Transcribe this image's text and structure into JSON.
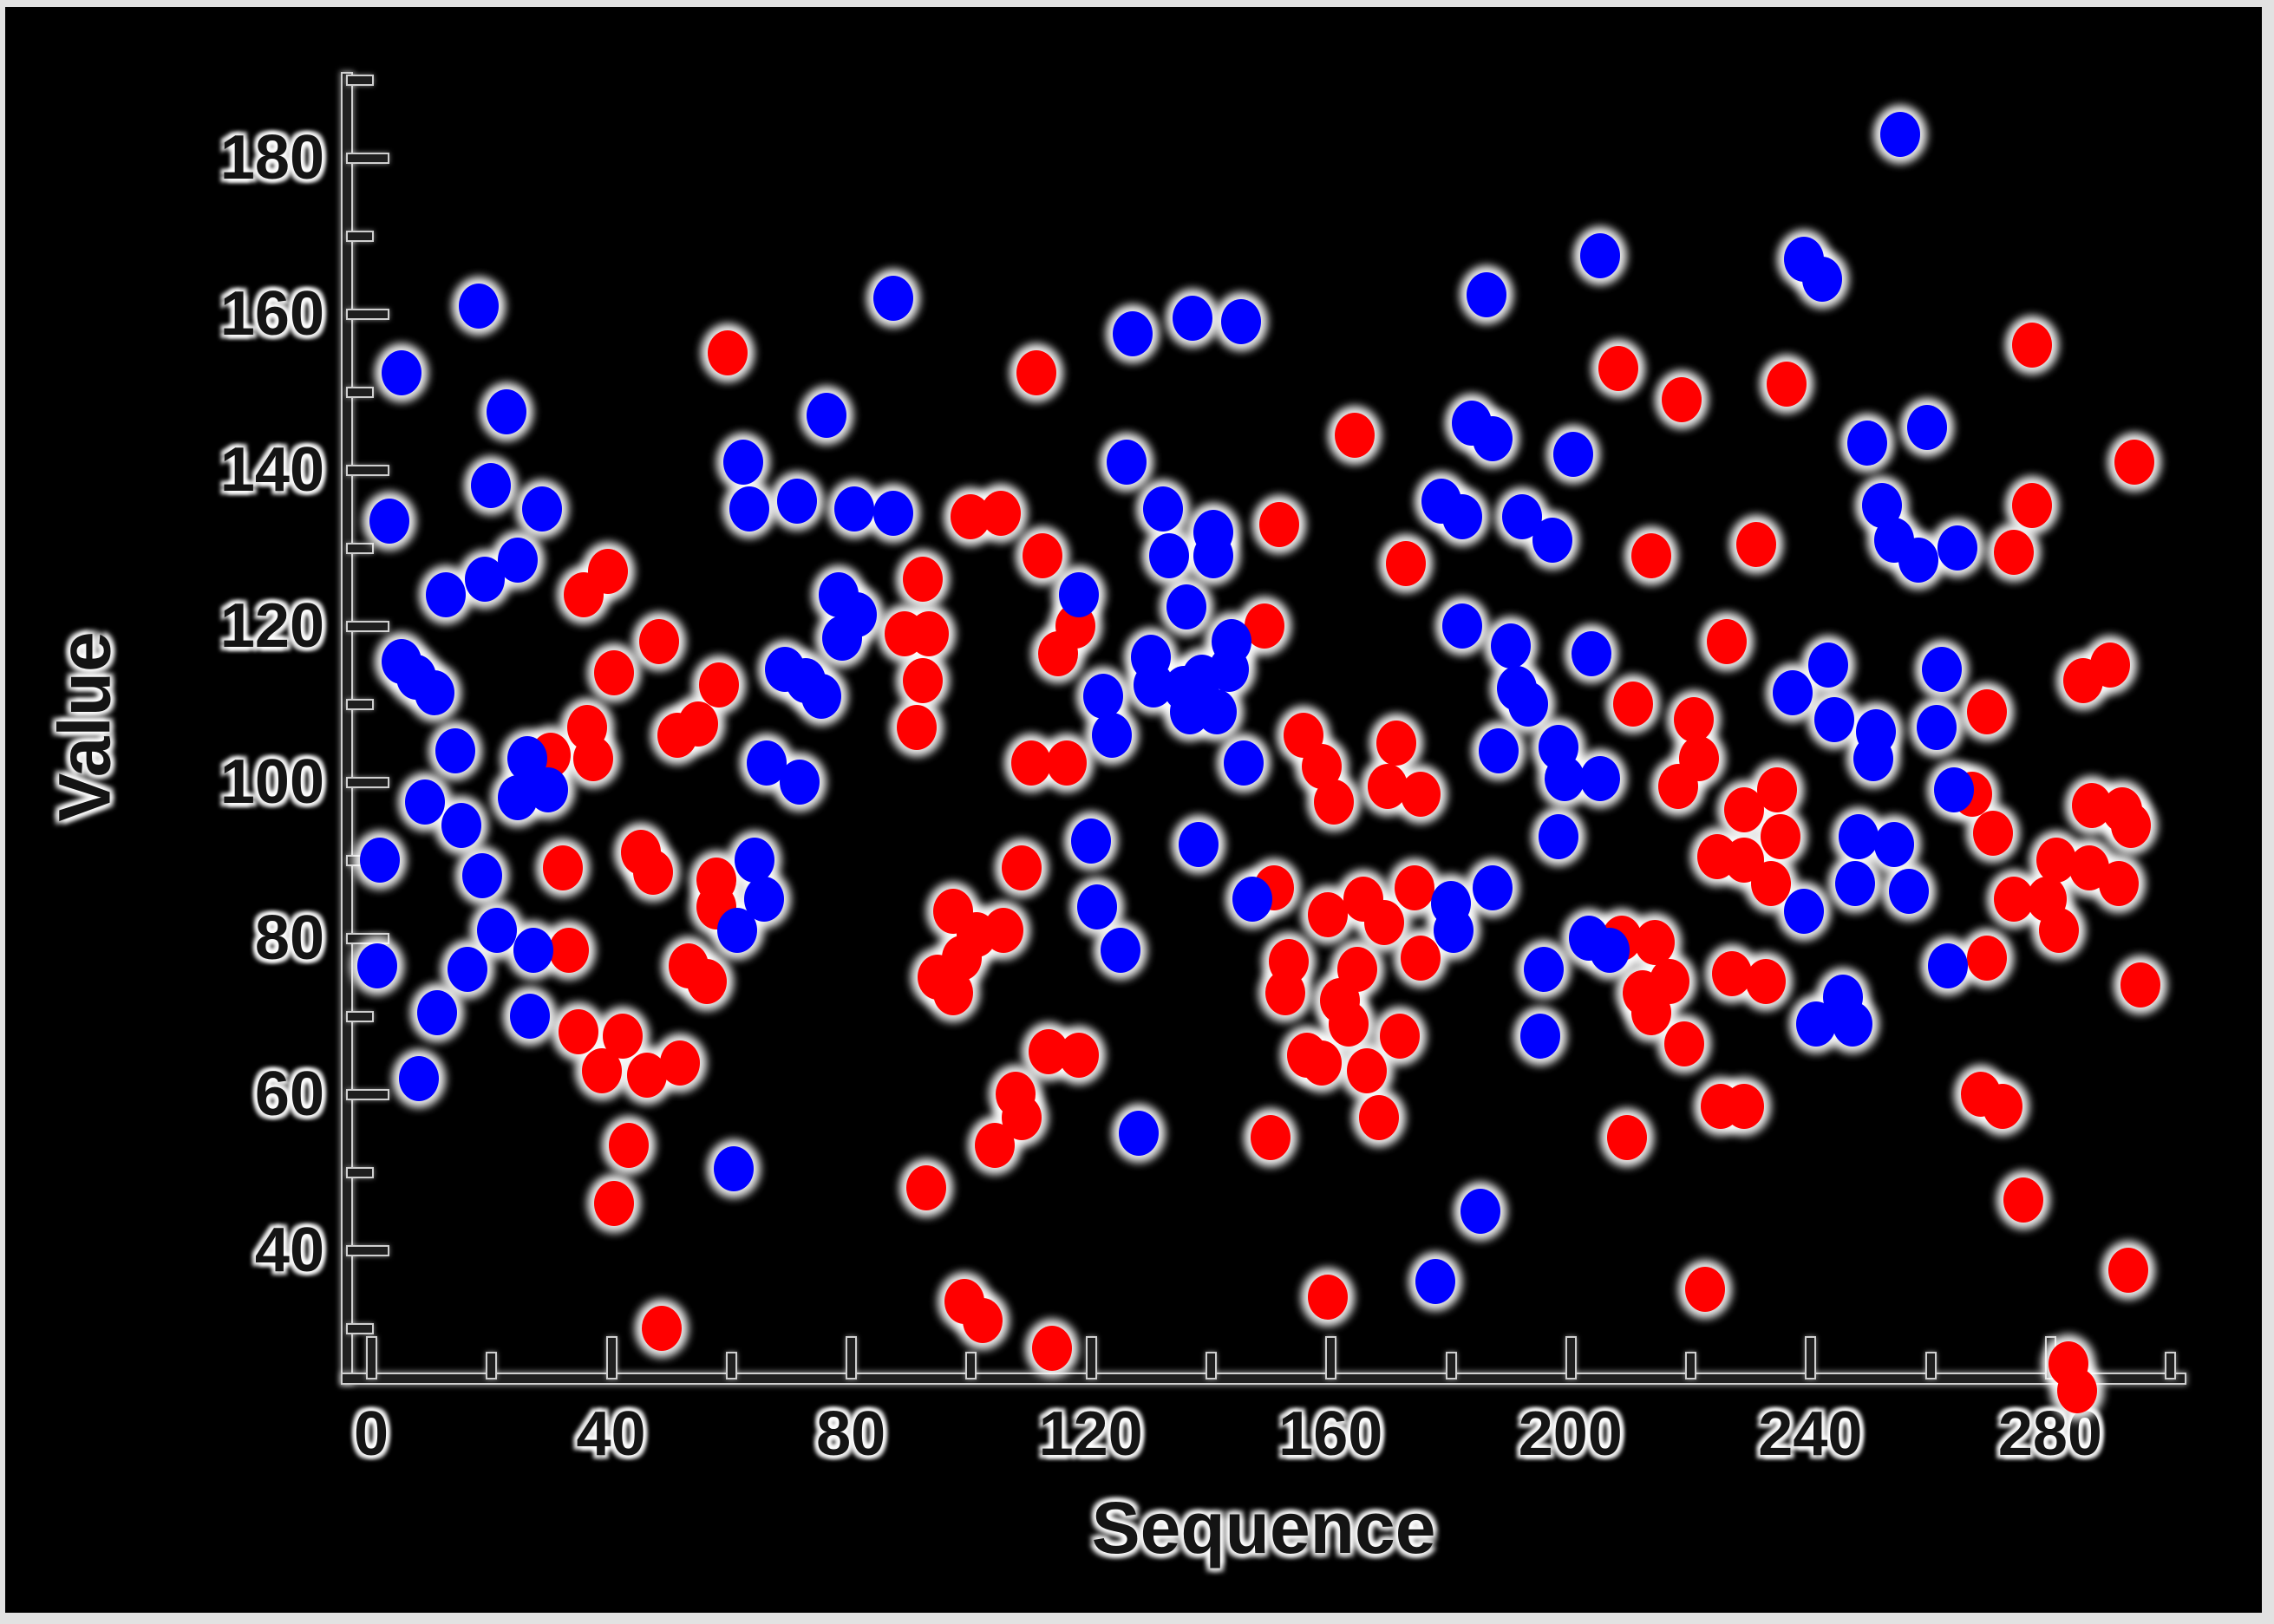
{
  "window": {
    "frame_color": "#e2e2e2",
    "plot_background": "#000000"
  },
  "chart_data": {
    "type": "scatter",
    "title": "",
    "xlabel": "Sequence",
    "ylabel": "Value",
    "xlim": [
      0,
      300
    ],
    "ylim": [
      20,
      190
    ],
    "grid": false,
    "legend": null,
    "marker_style": "filled-ellipse-with-white-halo",
    "axes": {
      "x": {
        "label": "Sequence",
        "major_ticks": [
          0,
          40,
          80,
          120,
          160,
          200,
          240,
          280
        ],
        "minor_ticks": [
          20,
          60,
          100,
          140,
          180,
          220,
          260,
          300
        ]
      },
      "y": {
        "label": "Value",
        "major_ticks": [
          40,
          60,
          80,
          100,
          120,
          140,
          160,
          180
        ],
        "minor_ticks": [
          30,
          50,
          70,
          90,
          110,
          130,
          150,
          170,
          190
        ]
      }
    },
    "series": [
      {
        "name": "red-series",
        "color": "#ff0000",
        "points": [
          [
            59.5,
            155
          ],
          [
            111,
            152.5
          ],
          [
            208,
            153
          ],
          [
            218.5,
            149
          ],
          [
            236,
            151
          ],
          [
            164,
            144.5
          ],
          [
            277,
            156
          ],
          [
            294,
            141
          ],
          [
            100,
            134
          ],
          [
            105,
            134.5
          ],
          [
            112,
            129
          ],
          [
            151.5,
            133
          ],
          [
            149,
            120
          ],
          [
            277,
            135.5
          ],
          [
            274,
            129.5
          ],
          [
            231,
            130.5
          ],
          [
            213.5,
            129
          ],
          [
            172.5,
            128
          ],
          [
            39.5,
            127
          ],
          [
            35.5,
            124
          ],
          [
            48,
            118
          ],
          [
            40.5,
            114
          ],
          [
            58,
            112.5
          ],
          [
            36,
            107
          ],
          [
            37,
            103
          ],
          [
            30,
            103.5
          ],
          [
            51,
            106
          ],
          [
            54.5,
            107.5
          ],
          [
            45,
            91
          ],
          [
            47,
            88.5
          ],
          [
            32,
            89
          ],
          [
            57.5,
            87.5
          ],
          [
            57.5,
            84
          ],
          [
            33,
            78.5
          ],
          [
            53,
            76.5
          ],
          [
            56,
            74.5
          ],
          [
            92,
            126
          ],
          [
            89,
            119
          ],
          [
            93,
            119
          ],
          [
            92,
            113
          ],
          [
            91,
            107
          ],
          [
            117.5,
            120
          ],
          [
            114.5,
            116.5
          ],
          [
            110,
            102.5
          ],
          [
            116,
            102.5
          ],
          [
            108.5,
            89
          ],
          [
            97,
            83.5
          ],
          [
            101,
            80.5
          ],
          [
            98.5,
            77.5
          ],
          [
            94.5,
            75
          ],
          [
            97,
            73
          ],
          [
            105.5,
            81
          ],
          [
            150.5,
            86.5
          ],
          [
            155.5,
            106
          ],
          [
            158.5,
            102
          ],
          [
            160.5,
            97.5
          ],
          [
            169.5,
            99.5
          ],
          [
            175,
            98.5
          ],
          [
            171,
            105
          ],
          [
            210.5,
            110
          ],
          [
            220.5,
            108
          ],
          [
            221.5,
            103
          ],
          [
            218,
            99.5
          ],
          [
            226,
            118
          ],
          [
            229,
            96.5
          ],
          [
            234.5,
            99
          ],
          [
            235,
            93
          ],
          [
            224.5,
            90.5
          ],
          [
            229,
            90
          ],
          [
            233.5,
            87
          ],
          [
            165.5,
            85
          ],
          [
            169,
            82
          ],
          [
            159.5,
            83
          ],
          [
            174,
            86.5
          ],
          [
            164.5,
            76
          ],
          [
            175,
            77.5
          ],
          [
            208.5,
            80
          ],
          [
            214,
            79.5
          ],
          [
            227,
            75.5
          ],
          [
            269.5,
            109
          ],
          [
            285.5,
            113
          ],
          [
            290,
            115
          ],
          [
            267,
            98.5
          ],
          [
            270.5,
            93.5
          ],
          [
            287,
            97
          ],
          [
            292,
            96.5
          ],
          [
            293.5,
            94.5
          ],
          [
            281,
            90
          ],
          [
            286.5,
            89
          ],
          [
            291.5,
            87
          ],
          [
            274,
            85
          ],
          [
            279.5,
            85
          ],
          [
            281.5,
            81
          ],
          [
            269.5,
            77.5
          ],
          [
            34.5,
            68
          ],
          [
            42,
            67.5
          ],
          [
            38.5,
            63
          ],
          [
            46,
            62.5
          ],
          [
            51.5,
            64
          ],
          [
            43,
            53.5
          ],
          [
            40.5,
            46
          ],
          [
            48.5,
            30
          ],
          [
            113,
            65.5
          ],
          [
            118,
            65
          ],
          [
            107.5,
            60
          ],
          [
            108.5,
            57
          ],
          [
            104,
            53.5
          ],
          [
            92.5,
            48
          ],
          [
            150,
            54.5
          ],
          [
            152.5,
            73
          ],
          [
            156,
            65
          ],
          [
            153,
            77
          ],
          [
            99,
            33.5
          ],
          [
            102,
            31
          ],
          [
            113.5,
            27.5
          ],
          [
            161.5,
            72
          ],
          [
            163,
            69
          ],
          [
            171.5,
            67.5
          ],
          [
            158.5,
            64
          ],
          [
            166,
            63
          ],
          [
            168,
            57
          ],
          [
            212,
            73
          ],
          [
            216.5,
            74.5
          ],
          [
            213.5,
            70.5
          ],
          [
            219,
            66.5
          ],
          [
            232.5,
            74.5
          ],
          [
            225,
            58.5
          ],
          [
            229,
            58.5
          ],
          [
            209.5,
            54.5
          ],
          [
            159.5,
            34
          ],
          [
            222.5,
            35
          ],
          [
            268.5,
            60
          ],
          [
            272,
            58.5
          ],
          [
            275.5,
            46.5
          ],
          [
            293,
            37.5
          ],
          [
            295,
            74
          ],
          [
            283,
            25.5
          ],
          [
            284.5,
            22
          ]
        ]
      },
      {
        "name": "blue-series",
        "color": "#0000ff",
        "points": [
          [
            5,
            152.5
          ],
          [
            18,
            161
          ],
          [
            22.5,
            147.5
          ],
          [
            62,
            141
          ],
          [
            20,
            138
          ],
          [
            28.5,
            135
          ],
          [
            63,
            135
          ],
          [
            71,
            136
          ],
          [
            76,
            147
          ],
          [
            87,
            162
          ],
          [
            127,
            157.5
          ],
          [
            137,
            159.5
          ],
          [
            145,
            159
          ],
          [
            126,
            141
          ],
          [
            80.5,
            135
          ],
          [
            87,
            134.5
          ],
          [
            132,
            135
          ],
          [
            205,
            167.5
          ],
          [
            186,
            162.5
          ],
          [
            239,
            167
          ],
          [
            242,
            164.5
          ],
          [
            183.5,
            146
          ],
          [
            187,
            144
          ],
          [
            200.5,
            142
          ],
          [
            178.5,
            136
          ],
          [
            182,
            134
          ],
          [
            192,
            134
          ],
          [
            197,
            131
          ],
          [
            255,
            183
          ],
          [
            259.5,
            145.5
          ],
          [
            249.5,
            143.5
          ],
          [
            252,
            135.5
          ],
          [
            254,
            131
          ],
          [
            258,
            128.5
          ],
          [
            264.5,
            130
          ],
          [
            3,
            133.5
          ],
          [
            24.5,
            128.5
          ],
          [
            19,
            126
          ],
          [
            12.5,
            124
          ],
          [
            5,
            115.5
          ],
          [
            7.5,
            113.5
          ],
          [
            10.5,
            111.5
          ],
          [
            69,
            114.5
          ],
          [
            72.5,
            113
          ],
          [
            75,
            111
          ],
          [
            78,
            124
          ],
          [
            81,
            121.5
          ],
          [
            78.5,
            118.5
          ],
          [
            14,
            104
          ],
          [
            26,
            103
          ],
          [
            24.5,
            98
          ],
          [
            29.5,
            99
          ],
          [
            66,
            102.5
          ],
          [
            71.5,
            100
          ],
          [
            9,
            97.5
          ],
          [
            1.5,
            90
          ],
          [
            15,
            94.5
          ],
          [
            18.5,
            88
          ],
          [
            64,
            90
          ],
          [
            65.5,
            85
          ],
          [
            21,
            81
          ],
          [
            61,
            81
          ],
          [
            1,
            76.5
          ],
          [
            16,
            76
          ],
          [
            27,
            78.5
          ],
          [
            140.5,
            132
          ],
          [
            140.5,
            129
          ],
          [
            133,
            129
          ],
          [
            118,
            124
          ],
          [
            136,
            122.5
          ],
          [
            130,
            116
          ],
          [
            130.5,
            112.5
          ],
          [
            122,
            111
          ],
          [
            135.5,
            112
          ],
          [
            138.5,
            113.5
          ],
          [
            136.5,
            109
          ],
          [
            141,
            109
          ],
          [
            143.5,
            118
          ],
          [
            143,
            114.5
          ],
          [
            123.5,
            106
          ],
          [
            145.5,
            102.5
          ],
          [
            120,
            92.5
          ],
          [
            138,
            92
          ],
          [
            147,
            85
          ],
          [
            121,
            84
          ],
          [
            125,
            78.5
          ],
          [
            182,
            120
          ],
          [
            190,
            117.5
          ],
          [
            203.5,
            116.5
          ],
          [
            191,
            112
          ],
          [
            193,
            110
          ],
          [
            188,
            104
          ],
          [
            198,
            104.5
          ],
          [
            199,
            100.5
          ],
          [
            205,
            100.5
          ],
          [
            198,
            93
          ],
          [
            187,
            86.5
          ],
          [
            180,
            84.5
          ],
          [
            180.5,
            81
          ],
          [
            203,
            80
          ],
          [
            206.5,
            78.5
          ],
          [
            237,
            111.5
          ],
          [
            243,
            115
          ],
          [
            244,
            108
          ],
          [
            251,
            106.5
          ],
          [
            250.5,
            103
          ],
          [
            262,
            114.5
          ],
          [
            261,
            107
          ],
          [
            264,
            99
          ],
          [
            248,
            93
          ],
          [
            254,
            92
          ],
          [
            247.5,
            87
          ],
          [
            256.5,
            86
          ],
          [
            239,
            83.5
          ],
          [
            263,
            76.5
          ],
          [
            11,
            70.5
          ],
          [
            26.5,
            70
          ],
          [
            8,
            62
          ],
          [
            60.5,
            50.5
          ],
          [
            128,
            55
          ],
          [
            195.5,
            76
          ],
          [
            195,
            67.5
          ],
          [
            185,
            45
          ],
          [
            177.5,
            36
          ],
          [
            245.5,
            72.5
          ],
          [
            241,
            69
          ],
          [
            247,
            69
          ]
        ]
      }
    ]
  }
}
